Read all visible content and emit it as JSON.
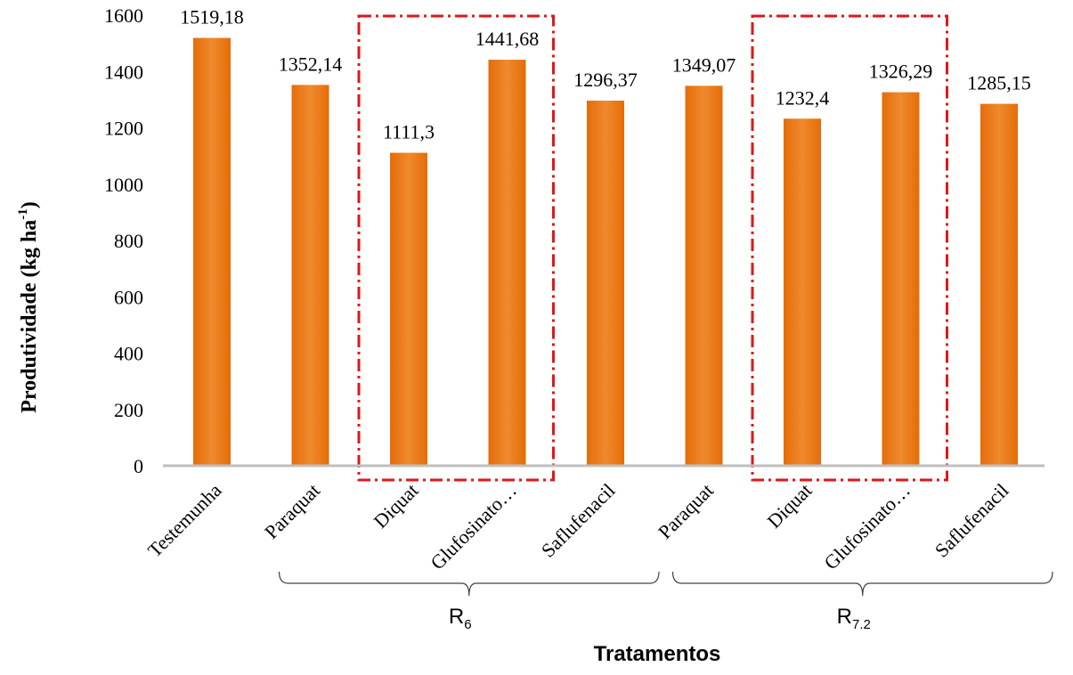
{
  "chart_data": {
    "type": "bar",
    "categories": [
      "Testemunha",
      "Paraquat",
      "Diquat",
      "Glufosinato…",
      "Saflufenacil",
      "Paraquat",
      "Diquat",
      "Glufosinato…",
      "Saflufenacil"
    ],
    "values": [
      1519.18,
      1352.14,
      1111.3,
      1441.68,
      1296.37,
      1349.07,
      1232.4,
      1326.29,
      1285.15
    ],
    "value_labels": [
      "1519,18",
      "1352,14",
      "1111,3",
      "1441,68",
      "1296,37",
      "1349,07",
      "1232,4",
      "1326,29",
      "1285,15"
    ],
    "ylim": [
      0,
      1600
    ],
    "yticks": [
      0,
      200,
      400,
      600,
      800,
      1000,
      1200,
      1400,
      1600
    ],
    "ylabel": "Produtividade  (kg ha",
    "ylabel_sup": "-1",
    "ylabel_close": ")",
    "xlabel": "Tratamentos",
    "groups": [
      {
        "label": "R",
        "sub": "6",
        "from": 1,
        "to": 4
      },
      {
        "label": "R",
        "sub": "7.2",
        "from": 5,
        "to": 8
      }
    ],
    "highlight_boxes": [
      {
        "from": 2,
        "to": 3
      },
      {
        "from": 6,
        "to": 7
      }
    ],
    "bar_color": "#E8720C",
    "highlight_color": "#E0161B",
    "axis_color": "#BFBFBF",
    "grid": false
  }
}
